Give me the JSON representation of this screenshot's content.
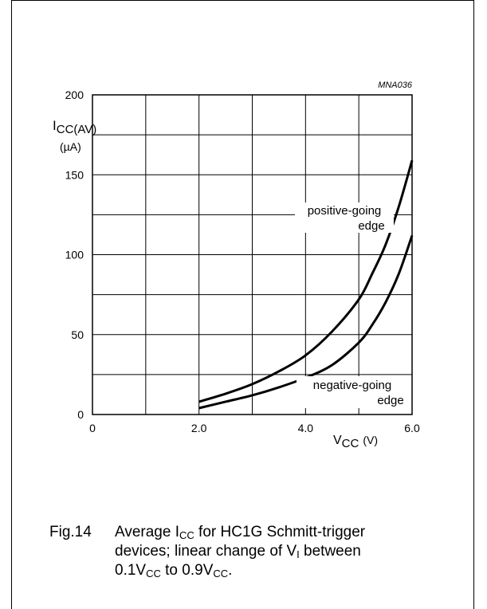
{
  "chart_data": {
    "type": "line",
    "code": "MNA036",
    "title": "",
    "xlabel": {
      "main": "V",
      "sub": "CC",
      "unit": "(V)"
    },
    "ylabel": {
      "main": "I",
      "sub": "CC(AV)",
      "unit": "(µA)"
    },
    "xlim": [
      0,
      6
    ],
    "ylim": [
      0,
      200
    ],
    "x_ticks": [
      "0",
      "2.0",
      "4.0",
      "6.0"
    ],
    "y_ticks": [
      "0",
      "50",
      "100",
      "150",
      "200"
    ],
    "grid": true,
    "series": [
      {
        "name": "positive-going edge",
        "label_lines": [
          "positive-going",
          "edge"
        ],
        "points": [
          [
            2.0,
            8
          ],
          [
            2.5,
            13
          ],
          [
            3.0,
            19
          ],
          [
            3.5,
            27
          ],
          [
            4.0,
            37
          ],
          [
            4.5,
            52
          ],
          [
            5.0,
            72
          ],
          [
            5.25,
            88
          ],
          [
            5.5,
            106
          ],
          [
            5.75,
            130
          ],
          [
            6.0,
            159
          ]
        ]
      },
      {
        "name": "negative-going edge",
        "label_lines": [
          "negative-going",
          "edge"
        ],
        "points": [
          [
            2.0,
            4
          ],
          [
            2.5,
            8
          ],
          [
            3.0,
            12
          ],
          [
            3.5,
            17
          ],
          [
            4.0,
            23
          ],
          [
            4.5,
            31
          ],
          [
            5.0,
            45
          ],
          [
            5.25,
            56
          ],
          [
            5.5,
            70
          ],
          [
            5.75,
            88
          ],
          [
            6.0,
            112
          ]
        ]
      }
    ]
  },
  "caption": {
    "fig": "Fig.14",
    "l1_a": "Average I",
    "l1_sub": "CC",
    "l1_b": " for HC1G Schmitt-trigger",
    "l2_a": "devices; linear change of V",
    "l2_sub": "I",
    "l2_b": " between",
    "l3_a": "0.1V",
    "l3_sub1": "CC",
    "l3_b": " to 0.9V",
    "l3_sub2": "CC",
    "l3_c": "."
  }
}
